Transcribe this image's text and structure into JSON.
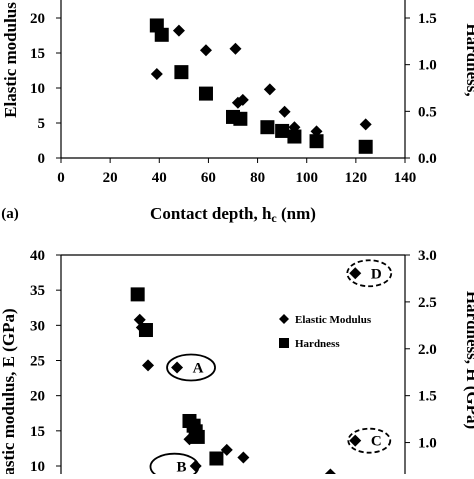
{
  "chart_data": [
    {
      "type": "scatter",
      "panel_label": "(a)",
      "xlabel": "Contact depth, h",
      "xlabel_subscript": "c",
      "xlabel_units": " (nm)",
      "ylabel_left": "Elastic modulus",
      "ylabel_right": "Hardness,",
      "xlim": [
        0,
        140
      ],
      "ylim_left": [
        0,
        20
      ],
      "ylim_right": [
        0,
        1.5
      ],
      "x_ticks": [
        "0",
        "20",
        "40",
        "60",
        "80",
        "100",
        "120",
        "140"
      ],
      "y_left_ticks": [
        "0",
        "5",
        "10",
        "15",
        "20"
      ],
      "y_right_ticks": [
        "0.0",
        "0.5",
        "1.0",
        "1.5"
      ],
      "series": [
        {
          "axis": "left",
          "marker": "diamond",
          "points": [
            [
              39,
              12
            ],
            [
              48,
              18.2
            ],
            [
              59,
              15.4
            ],
            [
              71,
              15.6
            ],
            [
              72,
              7.9
            ],
            [
              74,
              8.3
            ],
            [
              85,
              9.8
            ],
            [
              91,
              6.6
            ],
            [
              95,
              4.4
            ],
            [
              104,
              3.8
            ],
            [
              124,
              4.8
            ]
          ]
        },
        {
          "axis": "right",
          "marker": "square",
          "points": [
            [
              39,
              1.42
            ],
            [
              41,
              1.32
            ],
            [
              49,
              0.92
            ],
            [
              59,
              0.69
            ],
            [
              70,
              0.44
            ],
            [
              73,
              0.42
            ],
            [
              84,
              0.33
            ],
            [
              90,
              0.29
            ],
            [
              95,
              0.23
            ],
            [
              104,
              0.18
            ],
            [
              124,
              0.12
            ]
          ]
        }
      ]
    },
    {
      "type": "scatter",
      "xlabel": "",
      "ylabel_left": "Elastic modulus, E (GPa)",
      "ylabel_right": "Hardness, H (GPa)",
      "ylim_left": [
        10,
        40
      ],
      "ylim_right": [
        0.75,
        3.0
      ],
      "y_left_ticks": [
        "10",
        "15",
        "20",
        "25",
        "30",
        "35",
        "40"
      ],
      "y_right_ticks": [
        "1.0",
        "1.5",
        "2.0",
        "2.5",
        "3.0"
      ],
      "legend": [
        {
          "label": "Elastic Modulus",
          "marker": "diamond"
        },
        {
          "label": "Hardness",
          "marker": "square"
        }
      ],
      "legend_position": "middle-right",
      "annotations": [
        {
          "text": "A",
          "x": 56,
          "y": 24,
          "axis": "left"
        },
        {
          "text": "B",
          "x": 48,
          "y": 9.9,
          "axis": "left"
        },
        {
          "text": "C",
          "x": 142,
          "y": 13.6,
          "axis": "left"
        },
        {
          "text": "D",
          "x": 142,
          "y": 37.4,
          "axis": "left"
        }
      ],
      "series": [
        {
          "name": "Elastic Modulus",
          "axis": "left",
          "marker": "diamond",
          "points": [
            [
              38,
              30.8
            ],
            [
              39,
              29.7
            ],
            [
              42,
              24.3
            ],
            [
              56,
              24
            ],
            [
              62,
              13.8
            ],
            [
              65,
              10
            ],
            [
              80,
              12.3
            ],
            [
              88,
              11.2
            ],
            [
              130,
              8.8
            ],
            [
              142,
              13.6
            ],
            [
              142,
              37.4
            ]
          ]
        },
        {
          "name": "Hardness",
          "axis": "right",
          "marker": "square",
          "points": [
            [
              37,
              2.58
            ],
            [
              41,
              2.2
            ],
            [
              62,
              1.23
            ],
            [
              64,
              1.18
            ],
            [
              65,
              1.12
            ],
            [
              66,
              1.06
            ],
            [
              75,
              0.83
            ]
          ]
        }
      ]
    }
  ]
}
